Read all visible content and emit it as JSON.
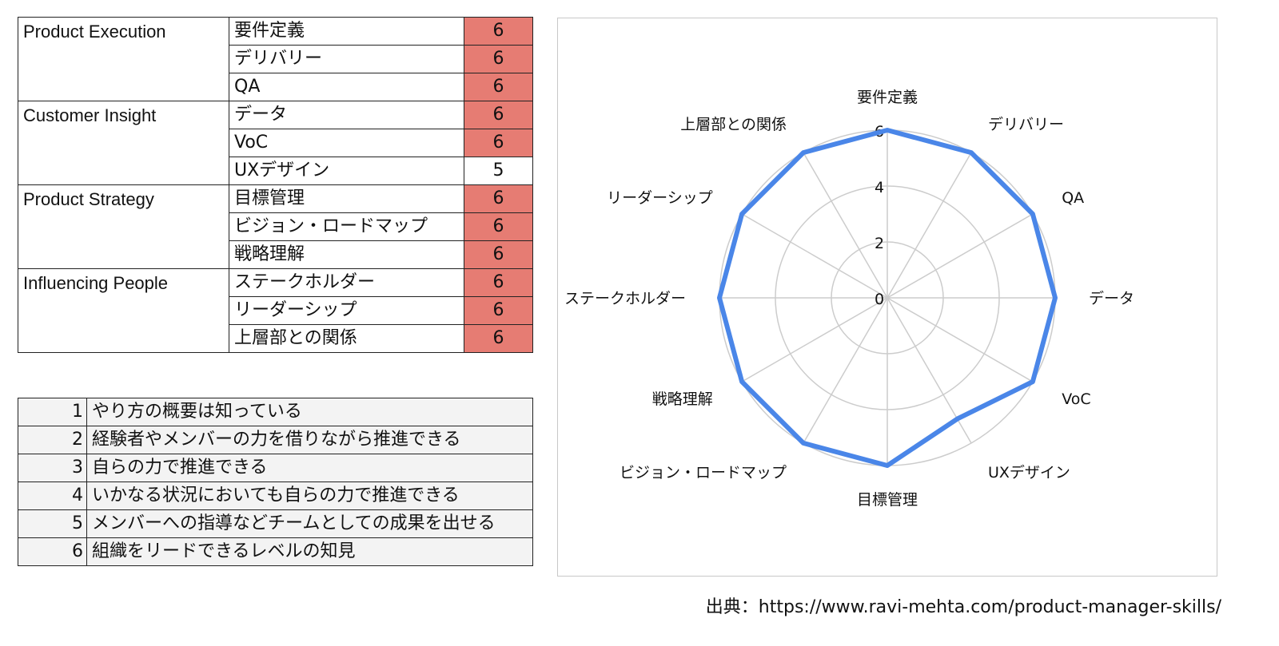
{
  "skills_table": [
    {
      "category": "Product Execution",
      "items": [
        {
          "skill": "要件定義",
          "score": 6
        },
        {
          "skill": "デリバリー",
          "score": 6
        },
        {
          "skill": "QA",
          "score": 6
        }
      ]
    },
    {
      "category": "Customer Insight",
      "items": [
        {
          "skill": "データ",
          "score": 6
        },
        {
          "skill": "VoC",
          "score": 6
        },
        {
          "skill": "UXデザイン",
          "score": 5
        }
      ]
    },
    {
      "category": "Product Strategy",
      "items": [
        {
          "skill": "目標管理",
          "score": 6
        },
        {
          "skill": "ビジョン・ロードマップ",
          "score": 6
        },
        {
          "skill": "戦略理解",
          "score": 6
        }
      ]
    },
    {
      "category": "Influencing People",
      "items": [
        {
          "skill": "ステークホルダー",
          "score": 6
        },
        {
          "skill": "リーダーシップ",
          "score": 6
        },
        {
          "skill": "上層部との関係",
          "score": 6
        }
      ]
    }
  ],
  "levels": [
    {
      "level": "1",
      "description": "やり方の概要は知っている"
    },
    {
      "level": "2",
      "description": "経験者やメンバーの力を借りながら推進できる"
    },
    {
      "level": "3",
      "description": "自らの力で推進できる"
    },
    {
      "level": "4",
      "description": "いかなる状況においても自らの力で推進できる"
    },
    {
      "level": "5",
      "description": "メンバーへの指導などチームとしての成果を出せる"
    },
    {
      "level": "6",
      "description": "組織をリードできるレベルの知見"
    }
  ],
  "chart_data": {
    "type": "radar",
    "categories": [
      "要件定義",
      "デリバリー",
      "QA",
      "データ",
      "VoC",
      "UXデザイン",
      "目標管理",
      "ビジョン・ロードマップ",
      "戦略理解",
      "ステークホルダー",
      "リーダーシップ",
      "上層部との関係"
    ],
    "series": [
      {
        "values": [
          6,
          6,
          6,
          6,
          6,
          5,
          6,
          6,
          6,
          6,
          6,
          6
        ]
      }
    ],
    "rlim": [
      0,
      6
    ],
    "ticks": [
      "0",
      "2",
      "4",
      "6"
    ],
    "grid": true,
    "legend": "none"
  },
  "colors": {
    "highlight": "#e67c73",
    "series": "#4a86e8",
    "grid": "#cccccc",
    "level_bg": "#f3f3f3"
  },
  "source_note": "出典：https://www.ravi-mehta.com/product-manager-skills/"
}
